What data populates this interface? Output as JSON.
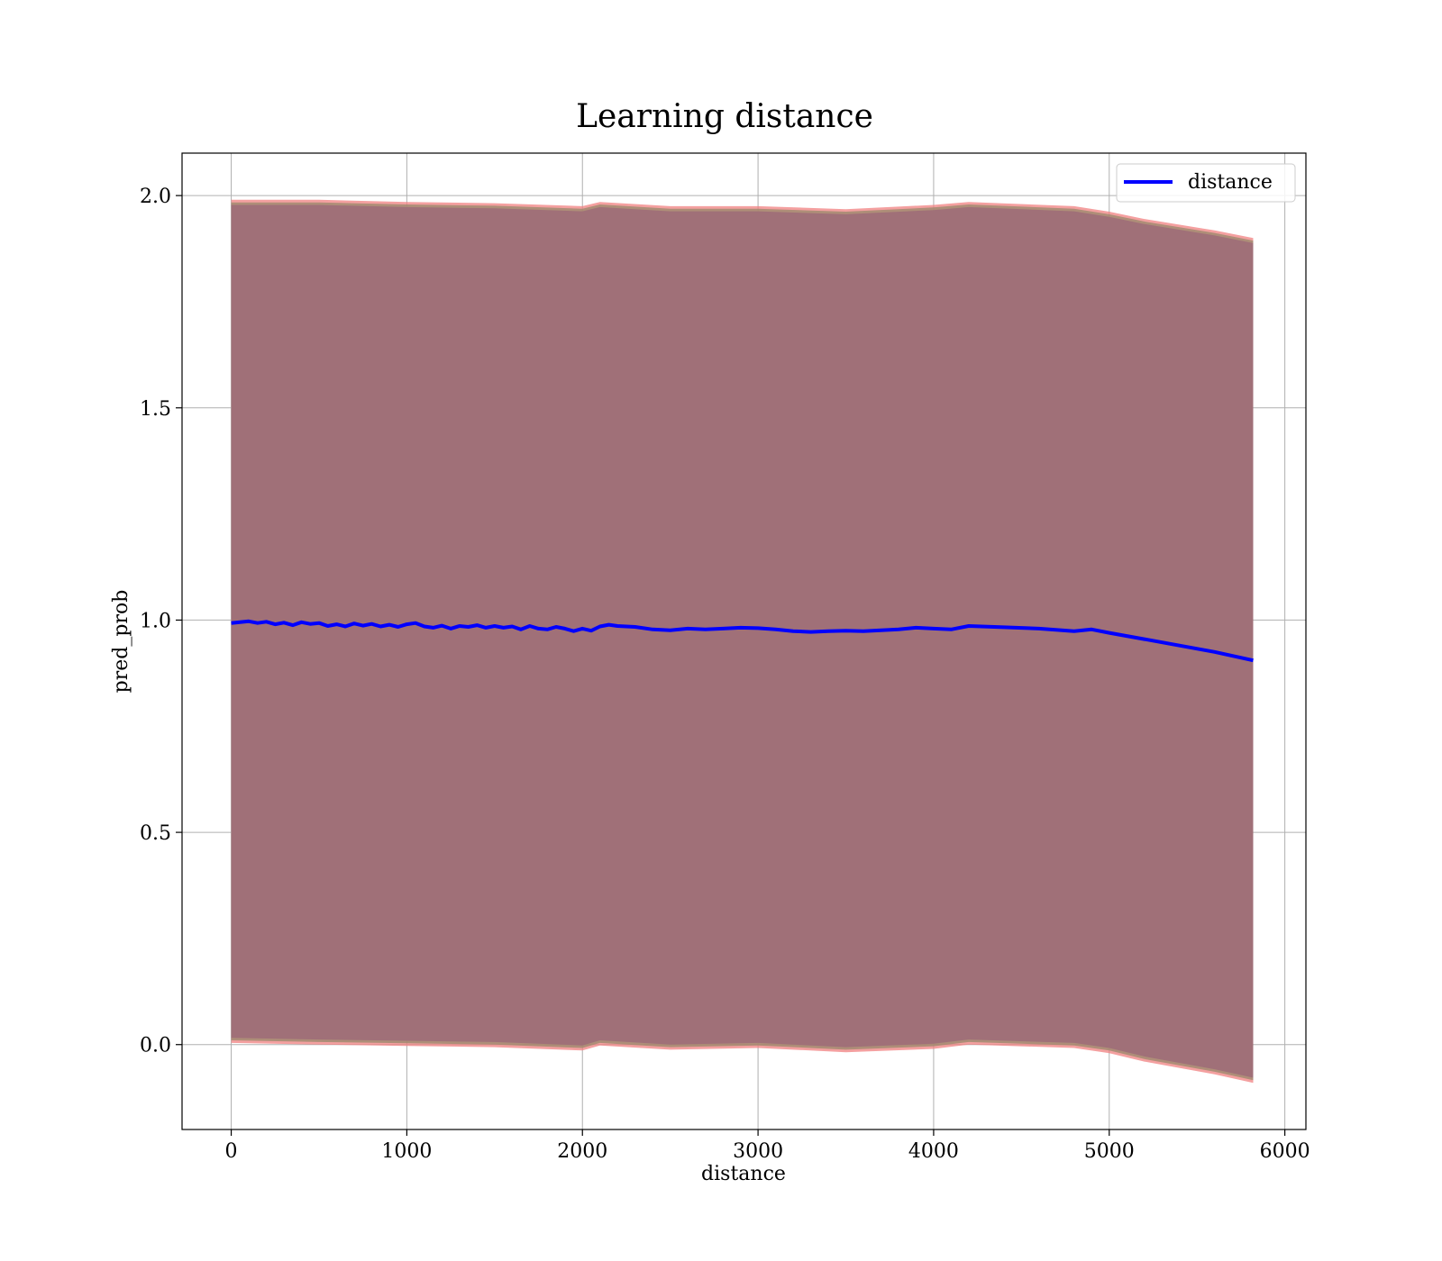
{
  "chart_data": {
    "type": "area",
    "title": "Learning distance",
    "xlabel": "distance",
    "ylabel": "pred_prob",
    "xlim": [
      -280,
      6120
    ],
    "ylim": [
      -0.2,
      2.1
    ],
    "xticks": [
      0,
      1000,
      2000,
      3000,
      4000,
      5000,
      6000
    ],
    "yticks": [
      0.0,
      0.5,
      1.0,
      1.5,
      2.0
    ],
    "xtick_labels": [
      "0",
      "1000",
      "2000",
      "3000",
      "4000",
      "5000",
      "6000"
    ],
    "ytick_labels": [
      "0.0",
      "0.5",
      "1.0",
      "1.5",
      "2.0"
    ],
    "grid": true,
    "legend": {
      "position": "top-right",
      "entries": [
        "distance"
      ]
    },
    "colors": {
      "line": "#0000ff",
      "band_outer": "#f08080",
      "band_middle": "#9c8a6e",
      "band_inner": "#8c4a5e"
    },
    "series": [
      {
        "name": "distance",
        "kind": "line",
        "x": [
          0,
          50,
          100,
          150,
          200,
          250,
          300,
          350,
          400,
          450,
          500,
          550,
          600,
          650,
          700,
          750,
          800,
          850,
          900,
          950,
          1000,
          1050,
          1100,
          1150,
          1200,
          1250,
          1300,
          1350,
          1400,
          1450,
          1500,
          1550,
          1600,
          1650,
          1700,
          1750,
          1800,
          1850,
          1900,
          1950,
          2000,
          2050,
          2100,
          2150,
          2200,
          2300,
          2400,
          2500,
          2600,
          2700,
          2800,
          2900,
          3000,
          3100,
          3200,
          3300,
          3400,
          3500,
          3600,
          3700,
          3800,
          3900,
          4000,
          4100,
          4200,
          4400,
          4600,
          4800,
          4900,
          5000,
          5200,
          5400,
          5600,
          5820
        ],
        "y": [
          0.993,
          0.995,
          0.997,
          0.993,
          0.996,
          0.99,
          0.994,
          0.988,
          0.995,
          0.991,
          0.993,
          0.986,
          0.99,
          0.985,
          0.992,
          0.987,
          0.991,
          0.985,
          0.989,
          0.984,
          0.99,
          0.993,
          0.985,
          0.982,
          0.987,
          0.98,
          0.986,
          0.984,
          0.988,
          0.982,
          0.986,
          0.982,
          0.985,
          0.978,
          0.986,
          0.98,
          0.978,
          0.984,
          0.98,
          0.974,
          0.98,
          0.975,
          0.985,
          0.989,
          0.986,
          0.984,
          0.978,
          0.976,
          0.98,
          0.978,
          0.98,
          0.982,
          0.981,
          0.978,
          0.974,
          0.972,
          0.974,
          0.975,
          0.974,
          0.976,
          0.978,
          0.982,
          0.98,
          0.978,
          0.986,
          0.983,
          0.98,
          0.974,
          0.978,
          0.97,
          0.955,
          0.94,
          0.925,
          0.905
        ]
      }
    ],
    "bands": [
      {
        "kind": "fill_between",
        "x": [
          0,
          500,
          1000,
          1500,
          2000,
          2100,
          2500,
          3000,
          3500,
          4000,
          4200,
          4800,
          5000,
          5200,
          5600,
          5820
        ],
        "upper": [
          1.99,
          1.99,
          1.985,
          1.982,
          1.975,
          1.985,
          1.975,
          1.975,
          1.968,
          1.978,
          1.985,
          1.975,
          1.962,
          1.945,
          1.918,
          1.9
        ],
        "lower": [
          0.004,
          0.0,
          -0.003,
          -0.006,
          -0.014,
          -0.002,
          -0.012,
          -0.008,
          -0.018,
          -0.01,
          0.0,
          -0.008,
          -0.02,
          -0.04,
          -0.07,
          -0.09
        ]
      }
    ]
  }
}
